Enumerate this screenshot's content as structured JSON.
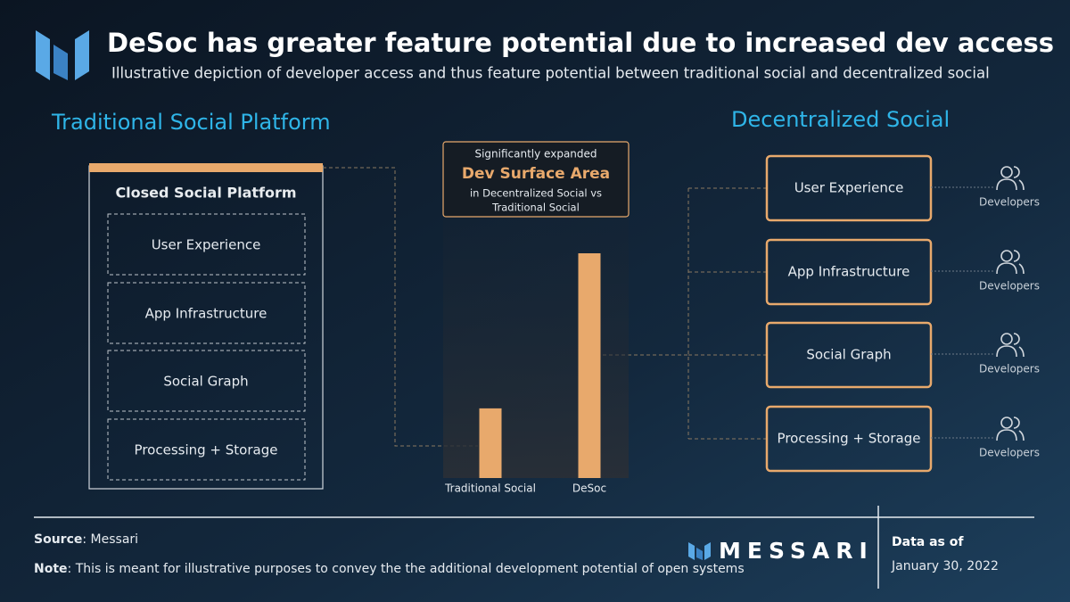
{
  "header": {
    "title": "DeSoc has greater feature potential due to increased dev access",
    "subtitle": "Illustrative depiction of developer access and thus feature potential between traditional social and decentralized social"
  },
  "traditional": {
    "heading": "Traditional Social Platform",
    "box_title": "Closed Social Platform",
    "layers": [
      "User Experience",
      "App Infrastructure",
      "Social Graph",
      "Processing + Storage"
    ]
  },
  "callout": {
    "line1": "Significantly expanded",
    "highlight": "Dev Surface Area",
    "line2": "in Decentralized Social vs",
    "line3": "Traditional Social"
  },
  "chart_data": {
    "type": "bar",
    "categories": [
      "Traditional Social",
      "DeSoc"
    ],
    "values": [
      31,
      100
    ],
    "color": "#e8a96c"
  },
  "decentralized": {
    "heading": "Decentralized Social",
    "layers": [
      "User Experience",
      "App Infrastructure",
      "Social Graph",
      "Processing + Storage"
    ],
    "developer_labels": [
      "Developers",
      "Developers",
      "Developers",
      "Developers"
    ]
  },
  "footer": {
    "source_label": "Source",
    "source": ": Messari",
    "note_label": "Note",
    "note": ": This is meant for illustrative purposes to convey the the additional development potential of open systems",
    "brand": "MESSARI",
    "date_label": "Data as of",
    "date": "January 30, 2022"
  }
}
